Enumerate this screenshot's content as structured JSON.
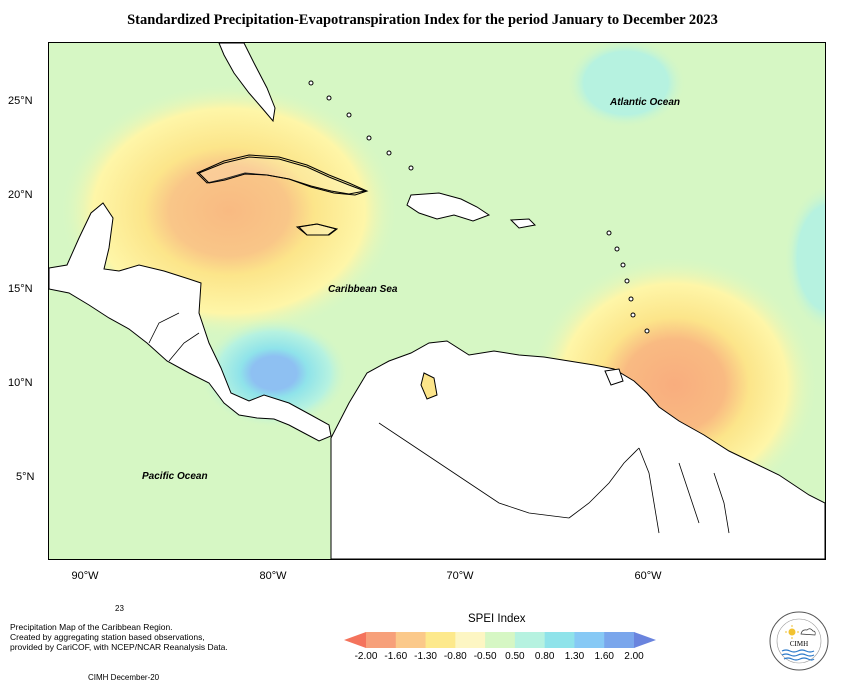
{
  "title": "Standardized Precipitation-Evapotranspiration Index for the period January to December 2023",
  "map": {
    "labels": {
      "atlantic": "Atlantic Ocean",
      "caribbean": "Caribbean Sea",
      "pacific": "Pacific Ocean"
    },
    "latitudes": [
      "25°N",
      "20°N",
      "15°N",
      "10°N",
      "5°N"
    ],
    "longitudes": [
      "90°W",
      "80°W",
      "70°W",
      "60°W"
    ],
    "colors": {
      "background_near_normal": "#d6f7c4",
      "dry_mild": "#fef6a8",
      "dry_moderate": "#fce58a",
      "dry_severe": "#f9ba82",
      "wet_mild": "#b6f2e0",
      "wet_moderate": "#8fe3ea",
      "wet_severe": "#8ec0f2"
    }
  },
  "footer": {
    "year_note": "23",
    "description_line1": "Precipitation Map of the Caribbean Region.",
    "description_line2": "Created by aggregating station based observations,",
    "description_line3": "provided by CariCOF, with NCEP/NCAR Reanalysis Data.",
    "credit": "CIMH December-20"
  },
  "legend": {
    "title": "SPEI Index",
    "ticks": [
      "-2.00",
      "-1.60",
      "-1.30",
      "-0.80",
      "-0.50",
      "0.50",
      "0.80",
      "1.30",
      "1.60",
      "2.00"
    ],
    "colors": [
      "#f4735c",
      "#f7a07a",
      "#fbc98a",
      "#fde98c",
      "#fdf6c3",
      "#d6f7c4",
      "#b6f2e0",
      "#8fe3ea",
      "#87c9f5",
      "#7aa6ec",
      "#6a84de"
    ]
  },
  "logo": {
    "text": "CIMH",
    "icons": [
      "sun-icon",
      "cloud-icon",
      "water-icon"
    ]
  }
}
